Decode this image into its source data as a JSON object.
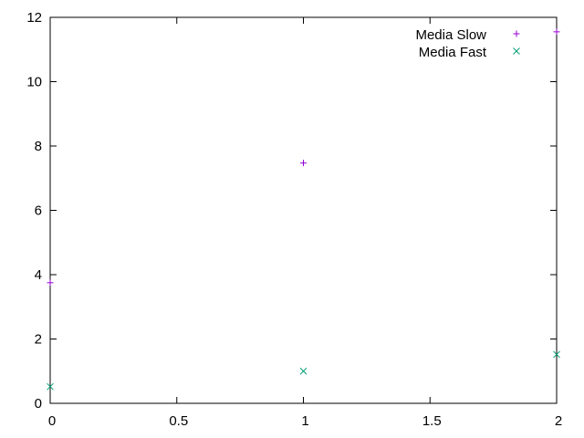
{
  "colors": {
    "background": "#ffffff",
    "axis": "#000000",
    "series_slow": "#9400d3",
    "series_fast": "#009e73"
  },
  "chart_data": {
    "type": "scatter",
    "title": "",
    "xlabel": "",
    "ylabel": "",
    "xlim": [
      0,
      2
    ],
    "ylim": [
      0,
      12
    ],
    "grid": false,
    "legend_placement": "top-right",
    "x_ticks": [
      0,
      0.5,
      1,
      1.5,
      2
    ],
    "x_tick_labels": [
      "0",
      "0.5",
      "1",
      "1.5",
      "2"
    ],
    "y_ticks": [
      0,
      2,
      4,
      6,
      8,
      10,
      12
    ],
    "y_tick_labels": [
      "0",
      "2",
      "4",
      "6",
      "8",
      "10",
      "12"
    ],
    "series": [
      {
        "name": "Media Slow",
        "marker": "plus",
        "color": "#9400d3",
        "x": [
          0,
          1,
          2
        ],
        "y": [
          3.75,
          7.47,
          11.55
        ]
      },
      {
        "name": "Media Fast",
        "marker": "cross",
        "color": "#009e73",
        "x": [
          0,
          1,
          2
        ],
        "y": [
          0.52,
          1.0,
          1.52
        ]
      }
    ]
  }
}
